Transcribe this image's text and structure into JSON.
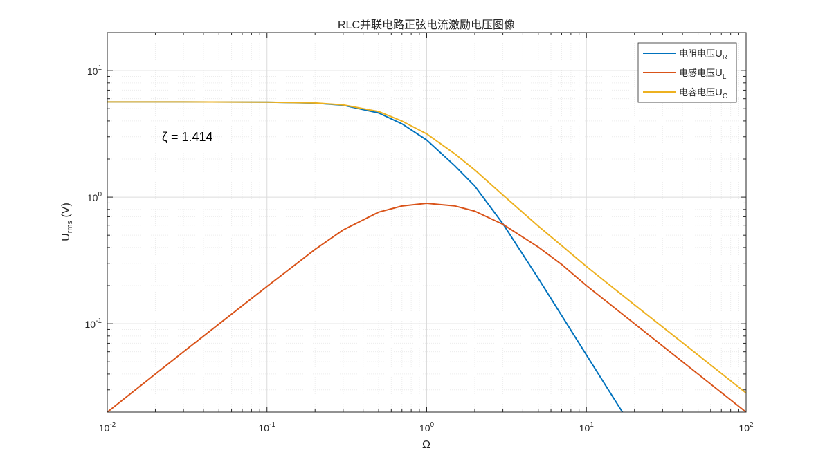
{
  "chart_data": {
    "type": "line",
    "title": "RLC并联电路正弦电流激励电压图像",
    "xlabel": "Ω",
    "ylabel": {
      "main": "U",
      "sub": "rms",
      "suffix": " (V)"
    },
    "xscale": "log",
    "yscale": "log",
    "xlim": [
      0.01,
      100
    ],
    "ylim": [
      0.02,
      20
    ],
    "grid": true,
    "x_ticks": [
      {
        "base": "10",
        "exp": "-2"
      },
      {
        "base": "10",
        "exp": "-1"
      },
      {
        "base": "10",
        "exp": "0"
      },
      {
        "base": "10",
        "exp": "1"
      },
      {
        "base": "10",
        "exp": "2"
      }
    ],
    "y_ticks": [
      {
        "base": "10",
        "exp": "-1"
      },
      {
        "base": "10",
        "exp": "0"
      },
      {
        "base": "10",
        "exp": "1"
      }
    ],
    "legend_position": "top-right",
    "annotation": "ζ = 1.414",
    "zeta": 1.414,
    "series": [
      {
        "name": "电阻电压",
        "sym": "U",
        "sub": "R",
        "color": "#0072BD",
        "x": [
          0.01,
          0.03,
          0.1,
          0.2,
          0.3,
          0.5,
          0.7,
          1,
          1.5,
          2,
          3,
          5,
          7,
          10,
          15,
          17
        ],
        "y": [
          5.657,
          5.654,
          5.63,
          5.535,
          5.326,
          4.622,
          3.796,
          2.828,
          1.77,
          1.223,
          0.616,
          0.228,
          0.116,
          0.0566,
          0.0251,
          0.0196
        ]
      },
      {
        "name": "电感电压",
        "sym": "U",
        "sub": "L",
        "color": "#D95319",
        "x": [
          0.01,
          0.03,
          0.1,
          0.2,
          0.3,
          0.5,
          0.7,
          1,
          1.5,
          2,
          3,
          5,
          7,
          10,
          20,
          50,
          100
        ],
        "y": [
          0.02,
          0.06,
          0.197,
          0.386,
          0.551,
          0.761,
          0.851,
          0.894,
          0.852,
          0.774,
          0.61,
          0.403,
          0.294,
          0.2,
          0.1,
          0.04,
          0.02
        ]
      },
      {
        "name": "电容电压",
        "sym": "U",
        "sub": "C",
        "color": "#EDB120",
        "x": [
          0.01,
          0.03,
          0.1,
          0.2,
          0.3,
          0.5,
          0.7,
          1,
          1.5,
          2,
          3,
          5,
          7,
          10,
          20,
          50,
          100
        ],
        "y": [
          5.657,
          5.655,
          5.63,
          5.55,
          5.36,
          4.75,
          3.99,
          3.16,
          2.2,
          1.64,
          1.04,
          0.59,
          0.414,
          0.283,
          0.141,
          0.0566,
          0.0283
        ]
      }
    ]
  }
}
